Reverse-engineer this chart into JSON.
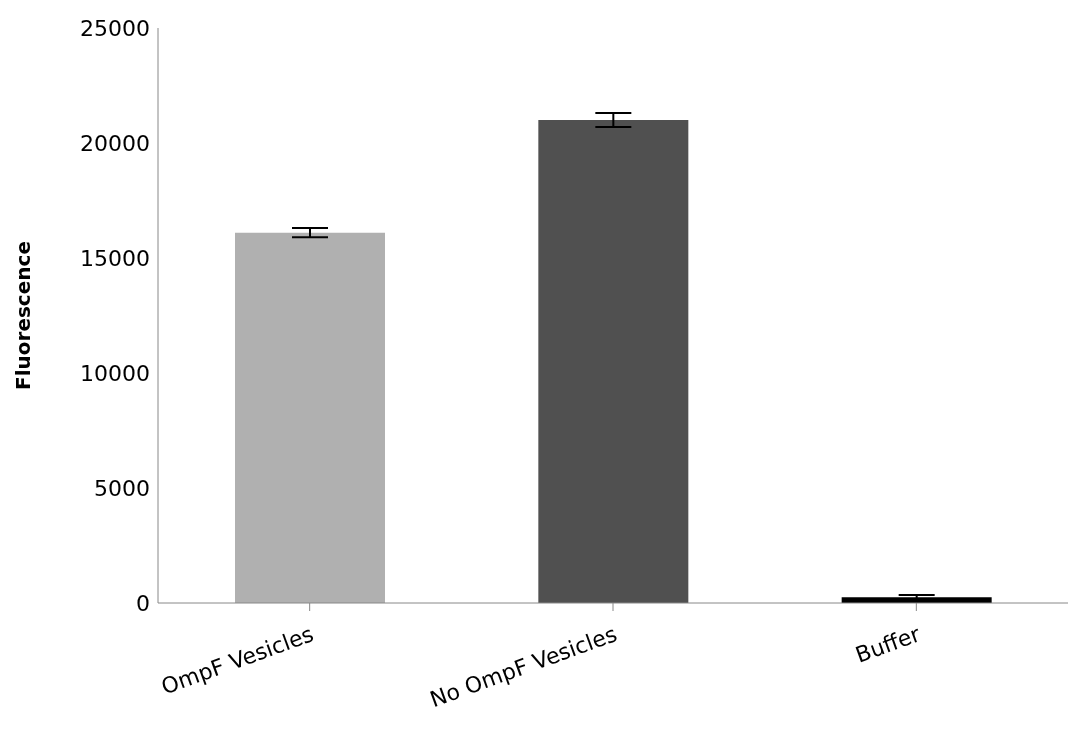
{
  "chart_data": {
    "type": "bar",
    "ylabel": "Fluorescence",
    "categories": [
      "OmpF Vesicles",
      "No OmpF Vesicles",
      "Buffer"
    ],
    "values": [
      16100,
      21000,
      250
    ],
    "colors": [
      "#b0b0b0",
      "#505050",
      "#000000"
    ],
    "errors": [
      200,
      300,
      100
    ],
    "ylim": [
      0,
      25000
    ],
    "yticks": [
      0,
      5000,
      10000,
      15000,
      20000,
      25000
    ],
    "grid": false,
    "legend": false
  }
}
